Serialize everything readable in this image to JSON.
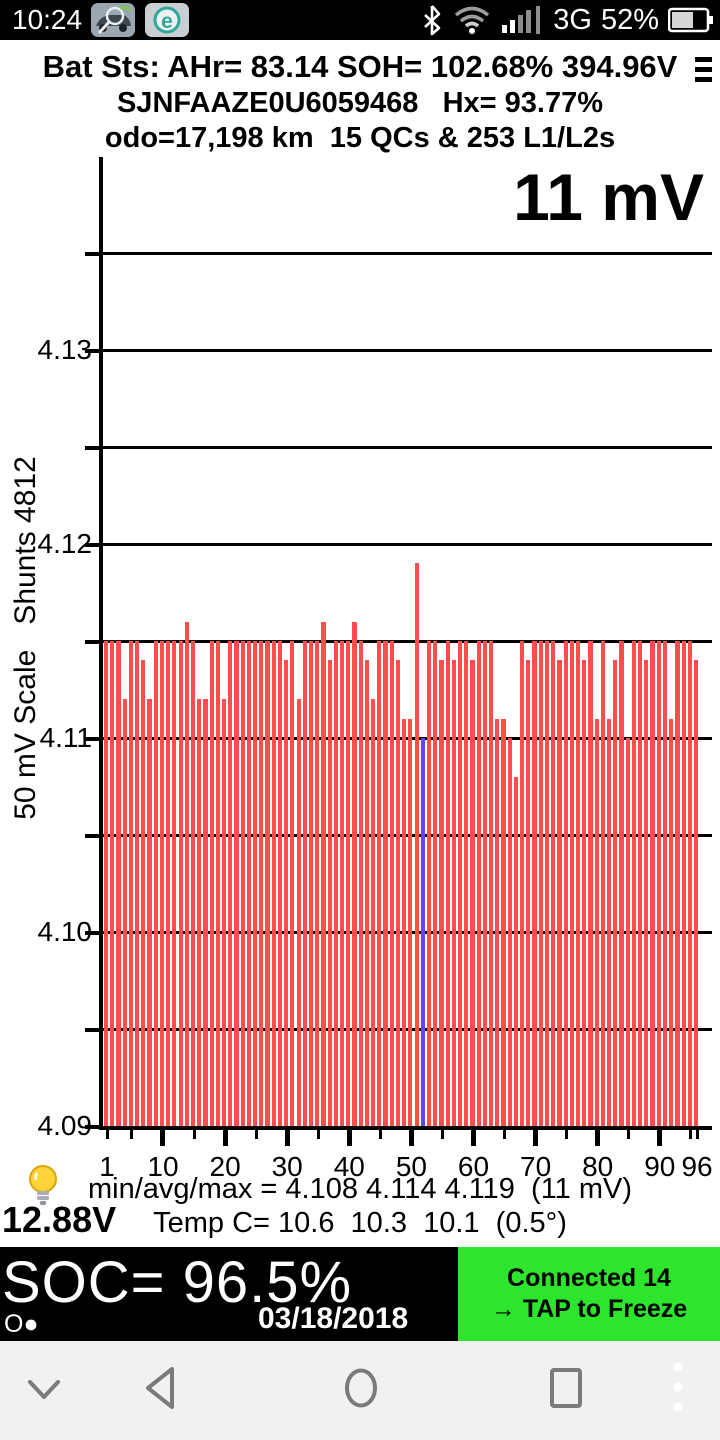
{
  "status_bar": {
    "time": "10:24",
    "network_label": "3G",
    "battery_percent": "52%",
    "battery_level": 0.52,
    "icons": [
      "leafspy-app-icon",
      "eset-app-icon",
      "bluetooth-icon",
      "wifi-icon",
      "signal-strength-icon",
      "battery-icon"
    ]
  },
  "header": {
    "line1": "Bat Sts: AHr= 83.14 SOH= 102.68% 394.96V",
    "line2": "SJNFAAZE0U6059468   Hx= 93.77%",
    "line3": "odo=17,198 km  15 QCs & 253 L1/L2s",
    "menu_icon": "hamburger-menu"
  },
  "chart_data": {
    "type": "bar",
    "title": "11 mV",
    "ylabel": "50 mV Scale   Shunts 4812",
    "xlabel": "",
    "ylim": [
      4.09,
      4.1375
    ],
    "grid": true,
    "gridline_values": [
      4.135,
      4.13,
      4.125,
      4.12,
      4.115,
      4.11,
      4.105,
      4.1,
      4.095
    ],
    "baseline_value": 4.09,
    "ytick_labels": [
      {
        "value": 4.13,
        "label": "4.13"
      },
      {
        "value": 4.12,
        "label": "4.12"
      },
      {
        "value": 4.11,
        "label": "4.11"
      },
      {
        "value": 4.1,
        "label": "4.10"
      },
      {
        "value": 4.09,
        "label": "4.09"
      }
    ],
    "xtick_labeled": [
      [
        1,
        "1"
      ],
      [
        10,
        "10"
      ],
      [
        20,
        "20"
      ],
      [
        30,
        "30"
      ],
      [
        40,
        "40"
      ],
      [
        50,
        "50"
      ],
      [
        60,
        "60"
      ],
      [
        70,
        "70"
      ],
      [
        80,
        "80"
      ],
      [
        90,
        "90"
      ],
      [
        96,
        "96"
      ]
    ],
    "xtick_minor": [
      5,
      15,
      25,
      35,
      45,
      55,
      65,
      75,
      85,
      95
    ],
    "bar_color": "#FF4D4D",
    "highlight_color": "#4D4DFF",
    "highlight_cell": 52,
    "categories_note": "cell numbers 1-96",
    "values": [
      4.115,
      4.115,
      4.115,
      4.112,
      4.115,
      4.115,
      4.114,
      4.112,
      4.115,
      4.115,
      4.115,
      4.115,
      4.115,
      4.116,
      4.115,
      4.112,
      4.112,
      4.115,
      4.115,
      4.112,
      4.115,
      4.115,
      4.115,
      4.115,
      4.115,
      4.115,
      4.115,
      4.115,
      4.115,
      4.114,
      4.115,
      4.112,
      4.115,
      4.115,
      4.115,
      4.116,
      4.114,
      4.115,
      4.115,
      4.115,
      4.116,
      4.115,
      4.114,
      4.112,
      4.115,
      4.115,
      4.115,
      4.114,
      4.111,
      4.111,
      4.119,
      4.11,
      4.115,
      4.115,
      4.114,
      4.115,
      4.114,
      4.115,
      4.115,
      4.114,
      4.115,
      4.115,
      4.115,
      4.111,
      4.111,
      4.11,
      4.108,
      4.115,
      4.114,
      4.115,
      4.115,
      4.115,
      4.115,
      4.114,
      4.115,
      4.115,
      4.115,
      4.114,
      4.115,
      4.111,
      4.115,
      4.111,
      4.114,
      4.115,
      4.11,
      4.115,
      4.115,
      4.114,
      4.115,
      4.115,
      4.115,
      4.111,
      4.115,
      4.115,
      4.115,
      4.114
    ]
  },
  "stats": {
    "line1": "min/avg/max = 4.108 4.114 4.119  (11 mV)",
    "line2": "Temp C= 10.6  10.3  10.1  (0.5°)",
    "aux_voltage": "12.88V",
    "bulb_icon": "lightbulb-icon"
  },
  "bottom_bar": {
    "soc": "SOC= 96.5%",
    "marker": "O●",
    "date": "03/18/2018",
    "connect_line1": "Connected 14",
    "connect_line2": "→ TAP to Freeze",
    "button_color": "#2EE52E"
  },
  "nav_bar": {
    "icons": [
      "chevron-down",
      "back",
      "home",
      "recents",
      "more-dots"
    ]
  }
}
